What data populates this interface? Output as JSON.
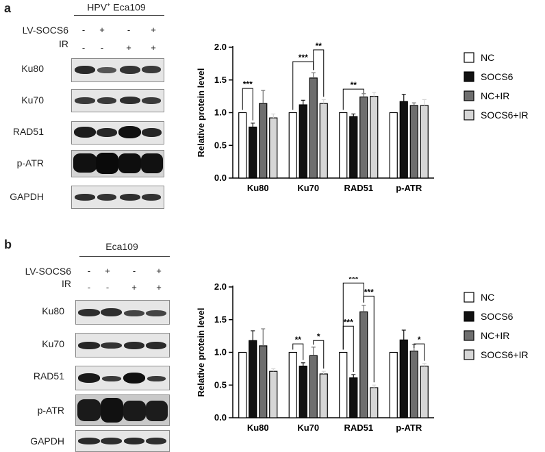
{
  "panel_a": {
    "letter": "a",
    "cell_line_prefix": "HPV",
    "cell_line_sup": "+",
    "cell_line_suffix": " Eca109",
    "row1_label": "LV-SOCS6",
    "row1_signs": [
      "-",
      "+",
      "-",
      "+"
    ],
    "row2_label": "IR",
    "row2_signs": [
      "-",
      "-",
      "+",
      "+"
    ],
    "proteins": [
      "Ku80",
      "Ku70",
      "RAD51",
      "p-ATR",
      "GAPDH"
    ]
  },
  "panel_b": {
    "letter": "b",
    "cell_line": "Eca109",
    "row1_label": "LV-SOCS6",
    "row1_signs": [
      "-",
      "+",
      "-",
      "+"
    ],
    "row2_label": "IR",
    "row2_signs": [
      "-",
      "-",
      "+",
      "+"
    ],
    "proteins": [
      "Ku80",
      "Ku70",
      "RAD51",
      "p-ATR",
      "GAPDH"
    ]
  },
  "chart_data": [
    {
      "type": "bar",
      "title": "",
      "xlabel": "",
      "ylabel": "Relative protein level",
      "ylim": [
        0,
        2.0
      ],
      "yticks": [
        "0.0",
        "0.5",
        "1.0",
        "1.5",
        "2.0"
      ],
      "categories": [
        "Ku80",
        "Ku70",
        "RAD51",
        "p-ATR"
      ],
      "series": [
        {
          "name": "NC",
          "values": [
            1.0,
            1.0,
            1.0,
            1.0
          ],
          "errors": [
            0,
            0,
            0,
            0
          ],
          "color": "#ffffff"
        },
        {
          "name": "SOCS6",
          "values": [
            0.78,
            1.12,
            0.94,
            1.17
          ],
          "errors": [
            0.06,
            0.07,
            0.04,
            0.11
          ],
          "color": "#111111"
        },
        {
          "name": "NC+IR",
          "values": [
            1.14,
            1.53,
            1.24,
            1.11
          ],
          "errors": [
            0.2,
            0.08,
            0.05,
            0.04
          ],
          "color": "#6e6e6e"
        },
        {
          "name": "SOCS6+IR",
          "values": [
            0.92,
            1.14,
            1.25,
            1.11
          ],
          "errors": [
            0.06,
            0.06,
            0.06,
            0.09
          ],
          "color": "#d6d6d6"
        }
      ],
      "legend_position": "right",
      "significance": [
        {
          "label": "***",
          "category": 0,
          "from": 0,
          "to": 1,
          "y": 1.37
        },
        {
          "label": "***",
          "category": 1,
          "from": 0,
          "to": 2,
          "y": 1.78
        },
        {
          "label": "**",
          "category": 1,
          "from": 2,
          "to": 3,
          "y": 1.96
        },
        {
          "label": "**",
          "category": 2,
          "from": 0,
          "to": 2,
          "y": 1.36
        }
      ]
    },
    {
      "type": "bar",
      "title": "",
      "xlabel": "",
      "ylabel": "Relative protein level",
      "ylim": [
        0,
        2.0
      ],
      "yticks": [
        "0.0",
        "0.5",
        "1.0",
        "1.5",
        "2.0"
      ],
      "categories": [
        "Ku80",
        "Ku70",
        "RAD51",
        "p-ATR"
      ],
      "series": [
        {
          "name": "NC",
          "values": [
            1.0,
            1.0,
            1.0,
            1.0
          ],
          "errors": [
            0,
            0,
            0,
            0
          ],
          "color": "#ffffff"
        },
        {
          "name": "SOCS6",
          "values": [
            1.18,
            0.79,
            0.61,
            1.19
          ],
          "errors": [
            0.15,
            0.05,
            0.05,
            0.15
          ],
          "color": "#111111"
        },
        {
          "name": "NC+IR",
          "values": [
            1.1,
            0.95,
            1.62,
            1.02
          ],
          "errors": [
            0.26,
            0.13,
            0.1,
            0.1
          ],
          "color": "#6e6e6e"
        },
        {
          "name": "SOCS6+IR",
          "values": [
            0.71,
            0.67,
            0.46,
            0.79
          ],
          "errors": [
            0.04,
            0.04,
            0.04,
            0.04
          ],
          "color": "#d6d6d6"
        }
      ],
      "legend_position": "right",
      "significance": [
        {
          "label": "**",
          "category": 1,
          "from": 0,
          "to": 1,
          "y": 1.13
        },
        {
          "label": "*",
          "category": 1,
          "from": 2,
          "to": 3,
          "y": 1.18
        },
        {
          "label": "***",
          "category": 2,
          "from": 0,
          "to": 1,
          "y": 1.4
        },
        {
          "label": "***",
          "category": 2,
          "from": 0,
          "to": 2,
          "y": 2.06
        },
        {
          "label": "***",
          "category": 2,
          "from": 2,
          "to": 3,
          "y": 1.86
        },
        {
          "label": "*",
          "category": 3,
          "from": 2,
          "to": 3,
          "y": 1.13
        }
      ]
    }
  ]
}
